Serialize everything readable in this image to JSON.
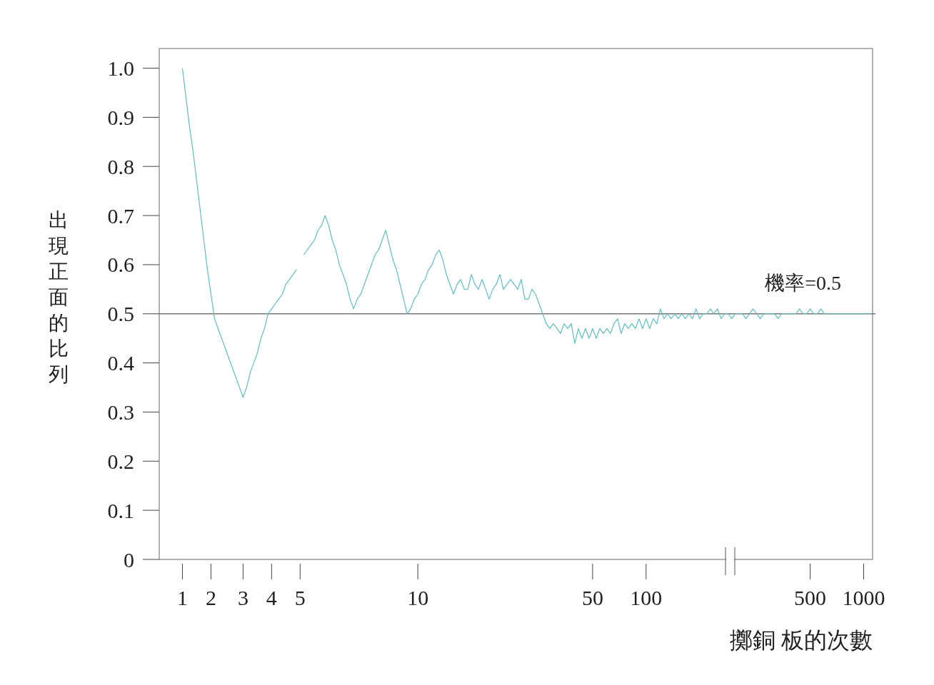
{
  "chart_data": {
    "type": "line",
    "xlabel": "擲銅 板的次數",
    "ylabel": "出現正面的比列",
    "categories": [
      null,
      null,
      null,
      null,
      null,
      null,
      "1",
      null,
      null,
      null,
      null,
      null,
      null,
      null,
      "2",
      null,
      null,
      null,
      null,
      null,
      null,
      null,
      null,
      "3",
      null,
      null,
      null,
      null,
      null,
      null,
      null,
      "4",
      null,
      null,
      null,
      null,
      null,
      null,
      null,
      "5",
      null,
      null,
      null,
      null,
      null,
      null,
      null,
      null,
      null,
      null,
      null,
      null,
      null,
      null,
      null,
      null,
      null,
      null,
      null,
      null,
      null,
      null,
      null,
      null,
      null,
      null,
      null,
      null,
      null,
      null,
      null,
      null,
      "10",
      null,
      null,
      null,
      null,
      null,
      null,
      null,
      null,
      null,
      null,
      null,
      null,
      null,
      null,
      null,
      null,
      null,
      null,
      null,
      null,
      null,
      null,
      null,
      null,
      null,
      null,
      null,
      null,
      null,
      null,
      null,
      null,
      null,
      null,
      null,
      null,
      null,
      null,
      null,
      null,
      null,
      null,
      null,
      null,
      null,
      null,
      null,
      null,
      "50",
      null,
      null,
      null,
      null,
      null,
      null,
      null,
      null,
      null,
      null,
      null,
      null,
      null,
      null,
      "100",
      null,
      null,
      null,
      null,
      null,
      null,
      null,
      null,
      null,
      null,
      null,
      null,
      null,
      null,
      null,
      null,
      null,
      null,
      null,
      null,
      null,
      null,
      null,
      null,
      null,
      null,
      null,
      null,
      null,
      null,
      null,
      null,
      null,
      null,
      null,
      null,
      null,
      null,
      null,
      null,
      null,
      null,
      null,
      null,
      null,
      "500",
      null,
      null,
      null,
      null,
      null,
      null,
      null,
      null,
      null,
      null,
      null,
      null,
      null,
      null,
      "1000",
      null,
      null
    ],
    "ylim": [
      0,
      1.04
    ],
    "yticks": [
      0,
      0.1,
      0.2,
      0.3,
      0.4,
      0.5,
      0.6,
      0.7,
      0.8,
      0.9,
      {
        "value": 1.0,
        "label": "1.0"
      }
    ],
    "ref_lines": [
      {
        "axis": "y",
        "value": 0.5,
        "label": "機率=0.5",
        "color": "#777777"
      }
    ],
    "series": [
      {
        "color": "#5fbfc4",
        "values": [
          null,
          null,
          null,
          null,
          null,
          null,
          1.0,
          0.94,
          0.88,
          0.83,
          0.77,
          0.71,
          0.65,
          0.59,
          0.54,
          0.49,
          0.47,
          0.45,
          0.43,
          0.41,
          0.39,
          0.37,
          0.35,
          0.33,
          0.35,
          0.38,
          0.4,
          0.42,
          0.45,
          0.47,
          0.5,
          0.51,
          0.52,
          0.53,
          0.54,
          0.56,
          0.57,
          0.58,
          0.59,
          null,
          0.62,
          0.63,
          0.64,
          0.65,
          0.67,
          0.68,
          0.7,
          0.68,
          0.65,
          0.63,
          0.6,
          0.58,
          0.56,
          0.53,
          0.51,
          0.53,
          0.54,
          0.56,
          0.58,
          0.6,
          0.62,
          0.63,
          0.65,
          0.67,
          0.64,
          0.61,
          0.59,
          0.56,
          0.53,
          0.5,
          0.51,
          0.53,
          0.54,
          0.56,
          0.57,
          0.59,
          0.6,
          0.62,
          0.63,
          0.61,
          0.58,
          0.56,
          0.54,
          0.56,
          0.57,
          0.55,
          0.55,
          0.58,
          0.56,
          0.55,
          0.57,
          0.55,
          0.53,
          0.55,
          0.56,
          0.58,
          0.55,
          0.56,
          0.57,
          0.56,
          0.55,
          0.57,
          0.53,
          0.53,
          0.55,
          0.54,
          0.52,
          0.5,
          0.48,
          0.47,
          0.48,
          0.47,
          0.46,
          0.48,
          0.47,
          0.48,
          0.44,
          0.47,
          0.45,
          0.47,
          0.45,
          0.47,
          0.45,
          0.47,
          0.46,
          0.47,
          0.46,
          0.48,
          0.49,
          0.46,
          0.48,
          0.47,
          0.48,
          0.47,
          0.49,
          0.47,
          0.49,
          0.47,
          0.49,
          0.48,
          0.51,
          0.49,
          0.5,
          0.49,
          0.5,
          0.49,
          0.5,
          0.49,
          0.5,
          0.49,
          0.51,
          0.49,
          0.5,
          0.5,
          0.51,
          0.5,
          0.51,
          0.49,
          0.5,
          0.5,
          0.49,
          0.5,
          0.5,
          0.5,
          0.49,
          0.5,
          0.51,
          0.5,
          0.49,
          0.5,
          0.5,
          0.5,
          0.5,
          0.49,
          0.5,
          0.5,
          0.5,
          0.5,
          0.5,
          0.51,
          0.5,
          0.5,
          0.51,
          0.5,
          0.5,
          0.51,
          0.5,
          0.5,
          0.5,
          0.5,
          0.5,
          0.5,
          0.5,
          0.5,
          0.5,
          0.5,
          0.5,
          0.5,
          0.5,
          0.5
        ]
      }
    ]
  }
}
